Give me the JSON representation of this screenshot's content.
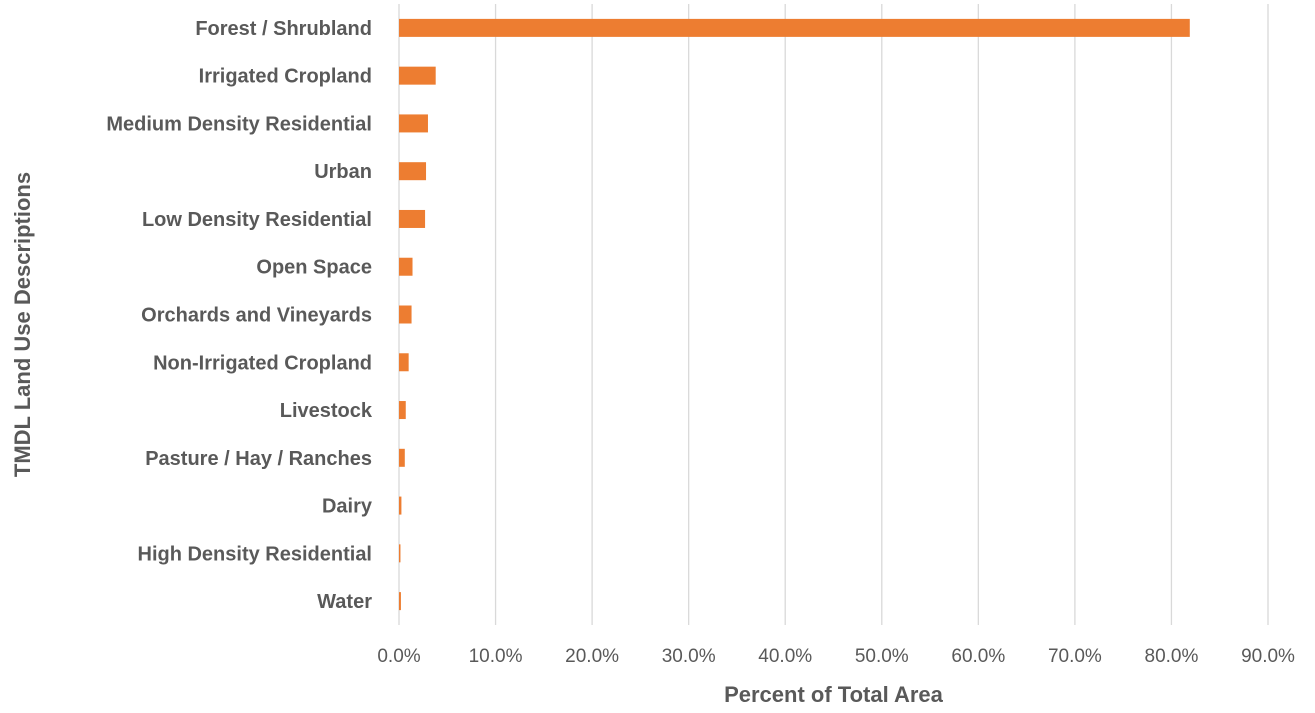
{
  "chart_data": {
    "type": "bar",
    "orientation": "horizontal",
    "title": "",
    "xlabel": "Percent of Total Area",
    "ylabel": "TMDL Land Use Descriptions",
    "xlim": [
      0,
      90
    ],
    "x_ticks": [
      "0.0%",
      "10.0%",
      "20.0%",
      "30.0%",
      "40.0%",
      "50.0%",
      "60.0%",
      "70.0%",
      "80.0%",
      "90.0%"
    ],
    "grid": "vertical",
    "bar_color": "#ED7D31",
    "categories": [
      "Forest / Shrubland",
      "Irrigated Cropland",
      "Medium Density Residential",
      "Urban",
      "Low Density Residential ",
      "Open Space",
      "Orchards and Vineyards",
      "Non-Irrigated Cropland",
      "Livestock",
      "Pasture / Hay / Ranches",
      "Dairy",
      "High Density Residential",
      "Water"
    ],
    "values": [
      81.9,
      3.8,
      3.0,
      2.8,
      2.7,
      1.4,
      1.3,
      1.0,
      0.7,
      0.6,
      0.25,
      0.15,
      0.2
    ]
  }
}
